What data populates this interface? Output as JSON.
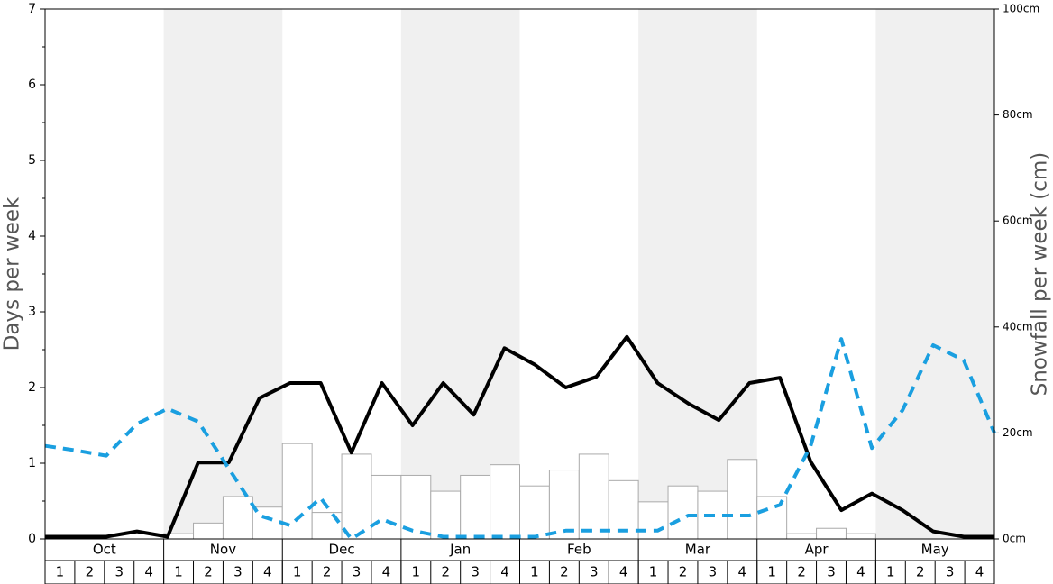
{
  "chart_data": {
    "type": "bar",
    "ylabel": "Days per week",
    "y2label": "Snowfall per week (cm)",
    "months": [
      "Oct",
      "Nov",
      "Dec",
      "Jan",
      "Feb",
      "Mar",
      "Apr",
      "May"
    ],
    "categories": [
      "1",
      "2",
      "3",
      "4",
      "1",
      "2",
      "3",
      "4",
      "1",
      "2",
      "3",
      "4",
      "1",
      "2",
      "3",
      "4",
      "1",
      "2",
      "3",
      "4",
      "1",
      "2",
      "3",
      "4",
      "1",
      "2",
      "3",
      "4",
      "1",
      "2",
      "3",
      "4"
    ],
    "ylim": [
      0,
      7
    ],
    "yticks": [
      0,
      1,
      2,
      3,
      4,
      5,
      6,
      7
    ],
    "y_minor_ticks": [
      0.5,
      1.5,
      2.5,
      3.5,
      4.5,
      5.5,
      6.5
    ],
    "y2lim": [
      0,
      100
    ],
    "y2ticks": [
      {
        "value": 0,
        "label": "0cm"
      },
      {
        "value": 20,
        "label": "20cm"
      },
      {
        "value": 40,
        "label": "40cm"
      },
      {
        "value": 60,
        "label": "60cm"
      },
      {
        "value": 80,
        "label": "80cm"
      },
      {
        "value": 100,
        "label": "100cm"
      }
    ],
    "series": [
      {
        "type": "bar",
        "axis": "y2",
        "color": "#ffffff",
        "edge_color": "#aaaaaa",
        "values": [
          0,
          0,
          0,
          0,
          1,
          3,
          8,
          6,
          18,
          5,
          16,
          12,
          12,
          9,
          12,
          14,
          10,
          13,
          16,
          11,
          7,
          10,
          9,
          15,
          8,
          1,
          2,
          1,
          0,
          0,
          0,
          0
        ]
      },
      {
        "type": "line",
        "color": "#000000",
        "dashed": false,
        "values": [
          0.03,
          0.03,
          0.03,
          0.1,
          0.03,
          1.01,
          1.01,
          1.86,
          2.06,
          2.06,
          1.14,
          2.06,
          1.5,
          2.06,
          1.64,
          2.52,
          2.3,
          2.0,
          2.14,
          2.67,
          2.06,
          1.79,
          1.57,
          2.06,
          2.13,
          1.02,
          0.38,
          0.6,
          0.38,
          0.1,
          0.03,
          0.03
        ]
      },
      {
        "type": "line",
        "color": "#1a9fe0",
        "dashed": true,
        "values": [
          1.23,
          1.17,
          1.1,
          1.52,
          1.72,
          1.55,
          0.93,
          0.31,
          0.18,
          0.54,
          0,
          0.26,
          0.11,
          0.03,
          0.03,
          0.03,
          0.03,
          0.11,
          0.11,
          0.11,
          0.11,
          0.31,
          0.31,
          0.31,
          0.45,
          1.23,
          2.64,
          1.2,
          1.7,
          2.56,
          2.36,
          1.4
        ]
      }
    ]
  }
}
